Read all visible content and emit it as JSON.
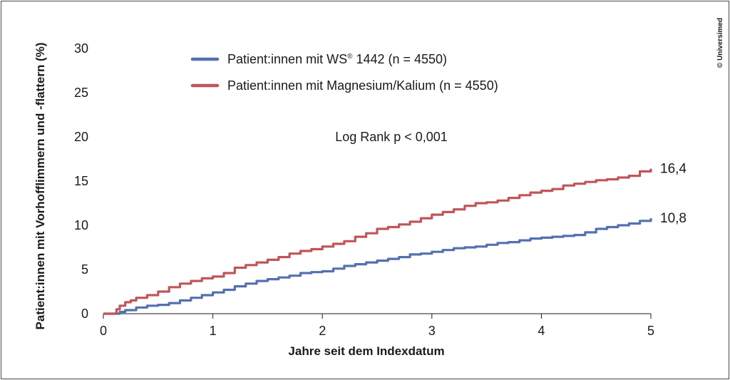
{
  "chart_data": {
    "type": "line",
    "xlabel": "Jahre seit dem Indexdatum",
    "ylabel": "Patient:innen mit Vorhofflimmern und -flattern (%)",
    "xlim": [
      0,
      5
    ],
    "ylim": [
      0,
      30
    ],
    "x_ticks": [
      "0",
      "1",
      "2",
      "3",
      "4",
      "5"
    ],
    "y_ticks": [
      "0",
      "5",
      "10",
      "15",
      "20",
      "25",
      "30"
    ],
    "grid": false,
    "legend_position": "top-center",
    "annotation": "Log Rank p < 0,001",
    "copyright": "© Universimed",
    "series": [
      {
        "name_prefix": "Patient:innen mit WS",
        "name_superscript": "®",
        "name_suffix": " 1442 (n = 4550)",
        "color": "#5470b0",
        "end_label": "10,8",
        "x": [
          0,
          0.1,
          0.15,
          0.2,
          0.3,
          0.4,
          0.5,
          0.6,
          0.7,
          0.8,
          0.9,
          1.0,
          1.1,
          1.2,
          1.3,
          1.4,
          1.5,
          1.6,
          1.7,
          1.8,
          1.9,
          2.0,
          2.1,
          2.2,
          2.3,
          2.4,
          2.5,
          2.6,
          2.7,
          2.8,
          2.9,
          3.0,
          3.1,
          3.2,
          3.3,
          3.4,
          3.5,
          3.6,
          3.7,
          3.8,
          3.9,
          4.0,
          4.1,
          4.2,
          4.3,
          4.4,
          4.5,
          4.6,
          4.7,
          4.8,
          4.9,
          5.0
        ],
        "y": [
          0,
          0,
          0.2,
          0.4,
          0.7,
          0.9,
          1.0,
          1.2,
          1.5,
          1.8,
          2.1,
          2.4,
          2.7,
          3.1,
          3.4,
          3.7,
          3.9,
          4.1,
          4.3,
          4.6,
          4.7,
          4.8,
          5.1,
          5.4,
          5.6,
          5.8,
          6.0,
          6.2,
          6.4,
          6.7,
          6.8,
          7.0,
          7.2,
          7.4,
          7.5,
          7.6,
          7.8,
          8.0,
          8.1,
          8.3,
          8.5,
          8.6,
          8.7,
          8.8,
          8.9,
          9.2,
          9.6,
          9.8,
          10.0,
          10.2,
          10.5,
          10.8
        ]
      },
      {
        "name_prefix": "Patient:innen mit Magnesium/Kalium (n = 4550)",
        "name_superscript": "",
        "name_suffix": "",
        "color": "#c0555a",
        "end_label": "16,4",
        "x": [
          0,
          0.08,
          0.12,
          0.15,
          0.2,
          0.25,
          0.3,
          0.4,
          0.5,
          0.6,
          0.7,
          0.8,
          0.9,
          1.0,
          1.1,
          1.2,
          1.3,
          1.4,
          1.5,
          1.6,
          1.7,
          1.8,
          1.9,
          2.0,
          2.1,
          2.2,
          2.3,
          2.4,
          2.5,
          2.6,
          2.7,
          2.8,
          2.9,
          3.0,
          3.1,
          3.2,
          3.3,
          3.4,
          3.5,
          3.6,
          3.7,
          3.8,
          3.9,
          4.0,
          4.1,
          4.2,
          4.3,
          4.4,
          4.5,
          4.6,
          4.7,
          4.8,
          4.9,
          5.0
        ],
        "y": [
          0,
          0,
          0.5,
          0.9,
          1.3,
          1.5,
          1.8,
          2.1,
          2.5,
          3.0,
          3.4,
          3.7,
          4.0,
          4.2,
          4.6,
          5.2,
          5.5,
          5.8,
          6.1,
          6.4,
          6.8,
          7.1,
          7.3,
          7.6,
          7.9,
          8.2,
          8.7,
          9.1,
          9.6,
          9.8,
          10.1,
          10.4,
          10.8,
          11.2,
          11.5,
          11.8,
          12.2,
          12.5,
          12.6,
          12.8,
          13.1,
          13.4,
          13.7,
          13.9,
          14.1,
          14.5,
          14.7,
          14.9,
          15.1,
          15.2,
          15.4,
          15.6,
          16.1,
          16.4
        ]
      }
    ]
  }
}
